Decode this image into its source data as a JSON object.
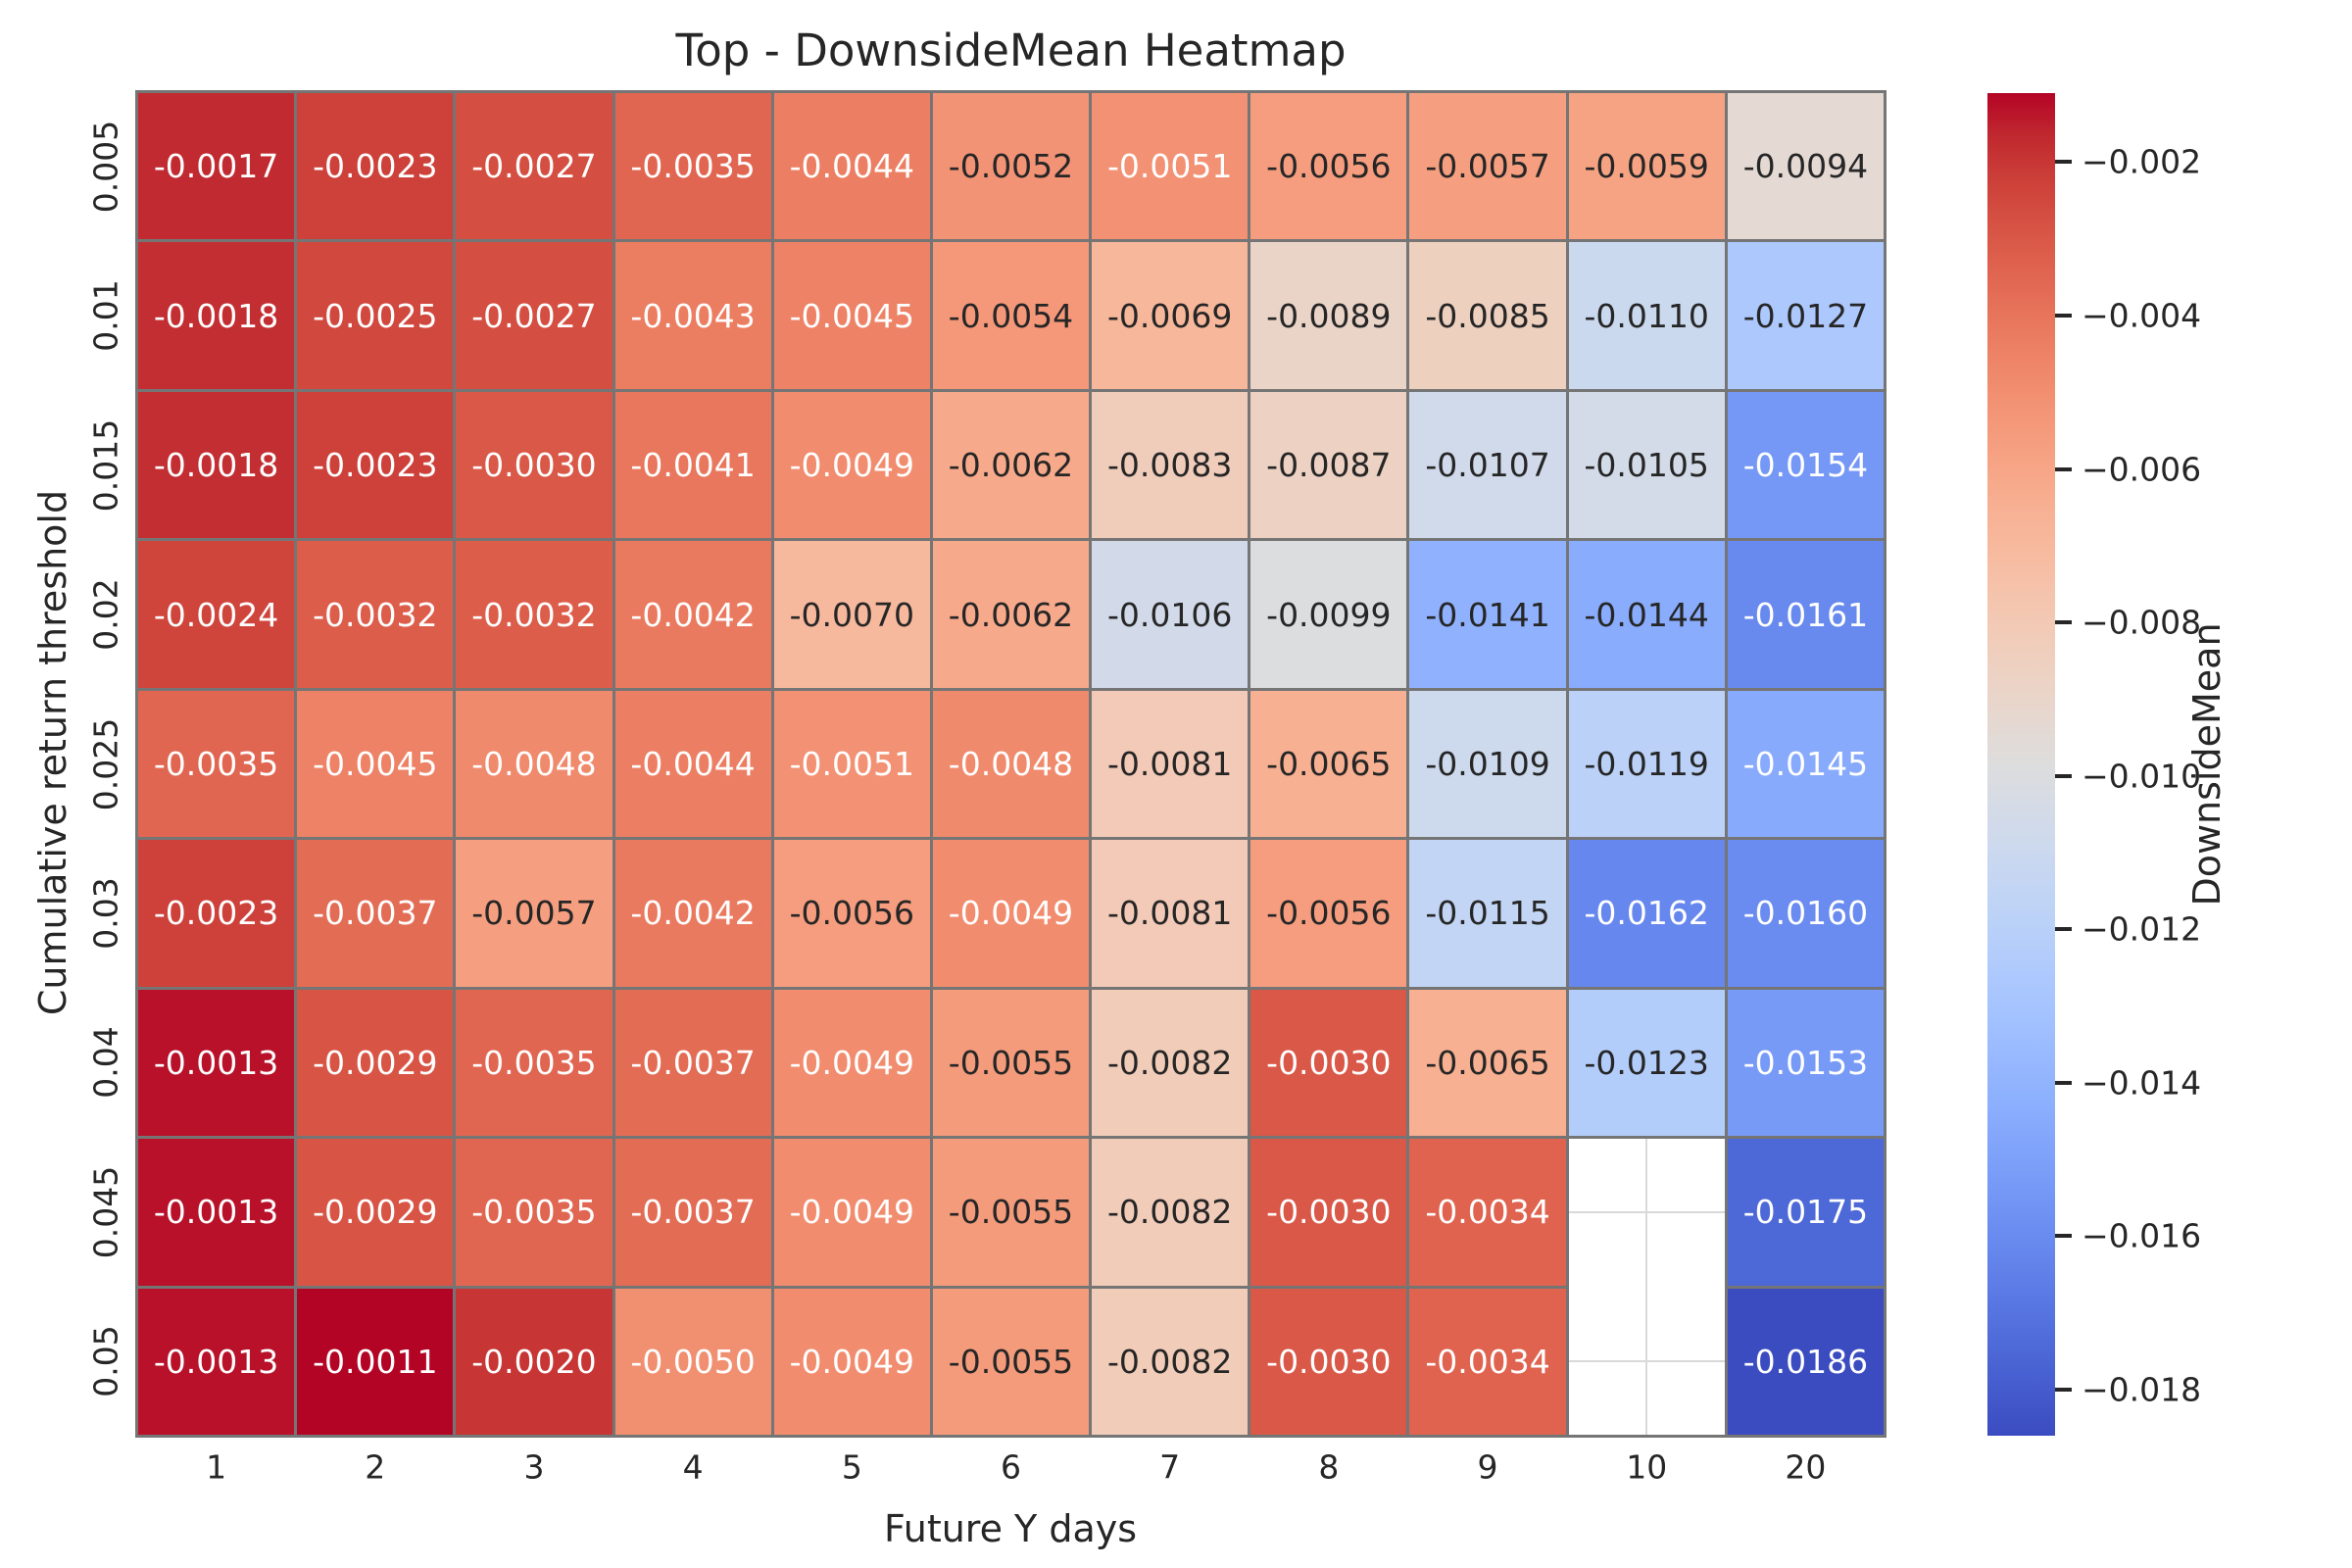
{
  "title": "Top - DownsideMean Heatmap",
  "x_axis": {
    "label": "Future Y days"
  },
  "y_axis": {
    "label": "Cumulative return threshold"
  },
  "colorbar": {
    "label": "DownsideMean",
    "ticks": [
      -0.002,
      -0.004,
      -0.006,
      -0.008,
      -0.01,
      -0.012,
      -0.014,
      -0.016,
      -0.018
    ]
  },
  "colors": {
    "background": "#ffffff",
    "grid_line": "#757575",
    "nan_grid_line": "#d9d9d9",
    "text_dark": "#262626",
    "text_light": "#ffffff"
  },
  "chart_data": {
    "type": "heatmap",
    "title": "Top - DownsideMean Heatmap",
    "xlabel": "Future Y days",
    "ylabel": "Cumulative return threshold",
    "colormap": "coolwarm",
    "vmin": -0.0186,
    "vmax": -0.0011,
    "value_format": ".4f",
    "annotated": true,
    "x_categories": [
      "1",
      "2",
      "3",
      "4",
      "5",
      "6",
      "7",
      "8",
      "9",
      "10",
      "20"
    ],
    "y_categories": [
      "0.005",
      "0.01",
      "0.015",
      "0.02",
      "0.025",
      "0.03",
      "0.04",
      "0.045",
      "0.05"
    ],
    "values": [
      [
        -0.0017,
        -0.0023,
        -0.0027,
        -0.0035,
        -0.0044,
        -0.0052,
        -0.0051,
        -0.0056,
        -0.0057,
        -0.0059,
        -0.0094
      ],
      [
        -0.0018,
        -0.0025,
        -0.0027,
        -0.0043,
        -0.0045,
        -0.0054,
        -0.0069,
        -0.0089,
        -0.0085,
        -0.011,
        -0.0127
      ],
      [
        -0.0018,
        -0.0023,
        -0.003,
        -0.0041,
        -0.0049,
        -0.0062,
        -0.0083,
        -0.0087,
        -0.0107,
        -0.0105,
        -0.0154
      ],
      [
        -0.0024,
        -0.0032,
        -0.0032,
        -0.0042,
        -0.007,
        -0.0062,
        -0.0106,
        -0.0099,
        -0.0141,
        -0.0144,
        -0.0161
      ],
      [
        -0.0035,
        -0.0045,
        -0.0048,
        -0.0044,
        -0.0051,
        -0.0048,
        -0.0081,
        -0.0065,
        -0.0109,
        -0.0119,
        -0.0145
      ],
      [
        -0.0023,
        -0.0037,
        -0.0057,
        -0.0042,
        -0.0056,
        -0.0049,
        -0.0081,
        -0.0056,
        -0.0115,
        -0.0162,
        -0.016
      ],
      [
        -0.0013,
        -0.0029,
        -0.0035,
        -0.0037,
        -0.0049,
        -0.0055,
        -0.0082,
        -0.003,
        -0.0065,
        -0.0123,
        -0.0153
      ],
      [
        -0.0013,
        -0.0029,
        -0.0035,
        -0.0037,
        -0.0049,
        -0.0055,
        -0.0082,
        -0.003,
        -0.0034,
        null,
        -0.0175
      ],
      [
        -0.0013,
        -0.0011,
        -0.002,
        -0.005,
        -0.0049,
        -0.0055,
        -0.0082,
        -0.003,
        -0.0034,
        null,
        -0.0186
      ]
    ]
  }
}
